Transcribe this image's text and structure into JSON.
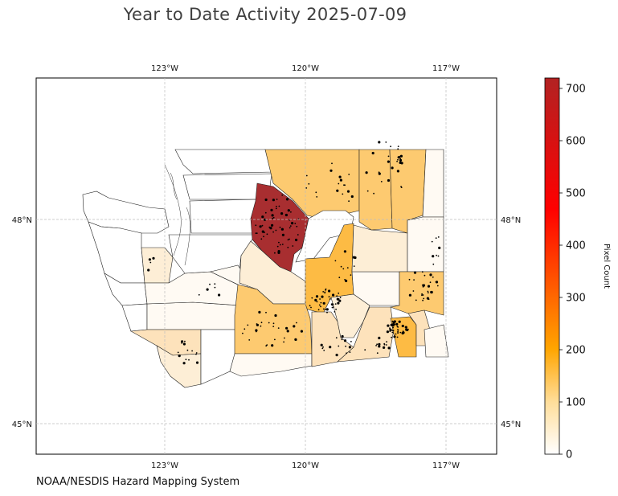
{
  "title": "Year to Date Activity 2025-07-09",
  "credit": "NOAA/NESDIS Hazard Mapping System",
  "map": {
    "lon_labels": [
      "123°W",
      "120°W",
      "117°W"
    ],
    "lat_labels": [
      "48°N",
      "45°N"
    ],
    "region": "Washington State counties",
    "gridlines": true
  },
  "colorbar": {
    "label": "Pixel Count",
    "ticks": [
      "0",
      "100",
      "200",
      "300",
      "400",
      "500",
      "600",
      "700"
    ],
    "range": [
      0,
      720
    ],
    "colors": [
      "#ffffff",
      "#ffdd99",
      "#ffa500",
      "#ff0000",
      "#b22222"
    ]
  },
  "colors": {
    "very_low": "#fffaf3",
    "low": "#fdeed6",
    "low_mid": "#fde2bb",
    "mid": "#fdca70",
    "mid_high": "#fdbb44",
    "high": "#a82e30"
  }
}
